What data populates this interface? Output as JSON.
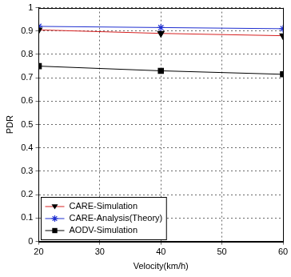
{
  "chart_data": {
    "type": "line",
    "x_label": "Velocity(km/h)",
    "y_label": "PDR",
    "x": [
      20,
      40,
      60
    ],
    "series": [
      {
        "name": "CARE-Simulation",
        "color": "#d62020",
        "marker": "triangle_down",
        "values": [
          0.905,
          0.89,
          0.88
        ]
      },
      {
        "name": "CARE-Analysis(Theory)",
        "color": "#1f2fd0",
        "marker": "star",
        "values": [
          0.92,
          0.915,
          0.91
        ]
      },
      {
        "name": "AODV-Simulation",
        "color": "#000000",
        "marker": "square",
        "values": [
          0.75,
          0.73,
          0.715
        ]
      }
    ],
    "xlim": [
      20,
      60
    ],
    "xticks": [
      20,
      30,
      40,
      50,
      60
    ],
    "ylim": [
      0,
      1
    ],
    "yticks": [
      0,
      0.1,
      0.2,
      0.3,
      0.4,
      0.5,
      0.6,
      0.7,
      0.8,
      0.9,
      1
    ],
    "grid": true,
    "legend": "lower left"
  }
}
